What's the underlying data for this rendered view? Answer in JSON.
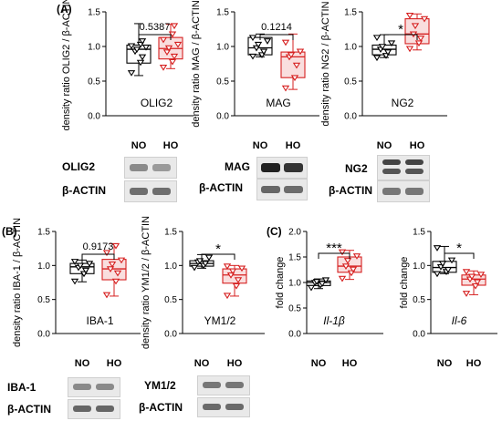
{
  "colors": {
    "control": "#000000",
    "treatment": "#d62020",
    "treatment_fill": "#f9dede"
  },
  "panels": [
    {
      "letter": "(A)"
    },
    {
      "letter": "(B)"
    },
    {
      "letter": "(C)"
    }
  ],
  "blots": [
    {
      "label": "OLIG2",
      "loading": "β-ACTIN"
    },
    {
      "label": "MAG",
      "loading": "β-ACTIN"
    },
    {
      "label": "NG2",
      "loading": "β-ACTIN"
    },
    {
      "label": "IBA-1",
      "loading": "β-ACTIN"
    },
    {
      "label": "YM1/2",
      "loading": "β-ACTIN"
    }
  ],
  "chart_data": [
    {
      "type": "box",
      "panel": "(A)",
      "ylabel": "density ratio OLIG2 / β-ACTIN",
      "ylim": [
        0,
        1.5
      ],
      "yticks": [
        "0.0",
        "0.5",
        "1.0",
        "1.5"
      ],
      "categories": [
        "NO",
        "HO"
      ],
      "inner_label": "OLIG2",
      "significance": "0.5387",
      "series": [
        {
          "name": "NO",
          "min": 0.58,
          "q1": 0.76,
          "median": 0.96,
          "q3": 1.02,
          "max": 1.33,
          "points": [
            0.62,
            0.77,
            0.85,
            0.93,
            0.96,
            0.99,
            1.01,
            1.03,
            1.08
          ]
        },
        {
          "name": "HO",
          "min": 0.68,
          "q1": 0.82,
          "median": 0.97,
          "q3": 1.13,
          "max": 1.32,
          "points": [
            0.7,
            0.78,
            0.86,
            0.92,
            0.98,
            1.03,
            1.1,
            1.18,
            1.3
          ]
        }
      ]
    },
    {
      "type": "box",
      "panel": "(A)",
      "ylabel": "density ratio MAG / β-ACTIN",
      "ylim": [
        0,
        1.5
      ],
      "yticks": [
        "0.0",
        "0.5",
        "1.0",
        "1.5"
      ],
      "categories": [
        "NO",
        "HO"
      ],
      "inner_label": "MAG",
      "significance": "0.1214",
      "series": [
        {
          "name": "NO",
          "min": 0.85,
          "q1": 0.88,
          "median": 0.98,
          "q3": 1.13,
          "max": 1.18,
          "points": [
            0.86,
            0.88,
            0.93,
            0.98,
            1.03,
            1.08,
            1.13
          ]
        },
        {
          "name": "HO",
          "min": 0.38,
          "q1": 0.55,
          "median": 0.85,
          "q3": 0.92,
          "max": 1.18,
          "points": [
            0.4,
            0.55,
            0.73,
            0.85,
            0.88,
            0.93,
            1.06
          ]
        }
      ]
    },
    {
      "type": "box",
      "panel": "(A)",
      "ylabel": "density ratio NG2 / β-ACTIN",
      "ylim": [
        0,
        1.5
      ],
      "yticks": [
        "0.0",
        "0.5",
        "1.0",
        "1.5"
      ],
      "categories": [
        "NO",
        "HO"
      ],
      "inner_label": "NG2",
      "significance": "*",
      "series": [
        {
          "name": "NO",
          "min": 0.84,
          "q1": 0.88,
          "median": 0.96,
          "q3": 1.02,
          "max": 1.17,
          "points": [
            0.84,
            0.87,
            0.92,
            0.96,
            1.0,
            1.05,
            1.13
          ]
        },
        {
          "name": "HO",
          "min": 0.95,
          "q1": 1.04,
          "median": 1.18,
          "q3": 1.4,
          "max": 1.47,
          "points": [
            0.97,
            1.05,
            1.12,
            1.18,
            1.3,
            1.4,
            1.45
          ]
        }
      ]
    },
    {
      "type": "box",
      "panel": "(B)",
      "ylabel": "density ratio IBA-1 / β-ACTIN",
      "ylim": [
        0,
        1.5
      ],
      "yticks": [
        "0.0",
        "0.5",
        "1.0",
        "1.5"
      ],
      "categories": [
        "NO",
        "HO"
      ],
      "inner_label": "IBA-1",
      "significance": "0.9173",
      "series": [
        {
          "name": "NO",
          "min": 0.76,
          "q1": 0.88,
          "median": 0.98,
          "q3": 1.03,
          "max": 1.08,
          "points": [
            0.77,
            0.88,
            0.93,
            0.97,
            1.0,
            1.03,
            1.06
          ]
        },
        {
          "name": "HO",
          "min": 0.55,
          "q1": 0.79,
          "median": 0.95,
          "q3": 1.09,
          "max": 1.32,
          "points": [
            0.57,
            0.77,
            0.89,
            0.95,
            1.02,
            1.08,
            1.19,
            1.29
          ]
        }
      ]
    },
    {
      "type": "box",
      "panel": "(B)",
      "ylabel": "density ratio YM1/2 / β-ACTIN",
      "ylim": [
        0,
        1.5
      ],
      "yticks": [
        "0.0",
        "0.5",
        "1.0",
        "1.5"
      ],
      "categories": [
        "NO",
        "HO"
      ],
      "inner_label": "YM1/2",
      "significance": "*",
      "series": [
        {
          "name": "NO",
          "min": 0.96,
          "q1": 0.99,
          "median": 1.03,
          "q3": 1.07,
          "max": 1.16,
          "points": [
            0.97,
            1.0,
            1.03,
            1.05,
            1.07,
            1.12
          ]
        },
        {
          "name": "HO",
          "min": 0.55,
          "q1": 0.74,
          "median": 0.86,
          "q3": 0.95,
          "max": 1.0,
          "points": [
            0.56,
            0.7,
            0.79,
            0.86,
            0.92,
            0.96,
            0.99
          ]
        }
      ]
    },
    {
      "type": "box",
      "panel": "(C)",
      "ylabel": "fold change",
      "ylim": [
        0,
        2.0
      ],
      "yticks": [
        "0.0",
        "0.5",
        "1.0",
        "1.5",
        "2.0"
      ],
      "categories": [
        "NO",
        "HO"
      ],
      "inner_label": "Il-1β",
      "significance": "***",
      "series": [
        {
          "name": "NO",
          "min": 0.88,
          "q1": 0.94,
          "median": 1.0,
          "q3": 1.03,
          "max": 1.07,
          "points": [
            0.9,
            0.95,
            0.98,
            1.0,
            1.02,
            1.05
          ]
        },
        {
          "name": "HO",
          "min": 1.06,
          "q1": 1.2,
          "median": 1.32,
          "q3": 1.5,
          "max": 1.63,
          "points": [
            1.08,
            1.19,
            1.26,
            1.32,
            1.43,
            1.52,
            1.6
          ]
        }
      ]
    },
    {
      "type": "box",
      "panel": "(C)",
      "ylabel": "fold change",
      "ylim": [
        0,
        1.5
      ],
      "yticks": [
        "0.0",
        "0.5",
        "1.0",
        "1.5"
      ],
      "categories": [
        "NO",
        "HO"
      ],
      "inner_label": "Il-6",
      "significance": "*",
      "series": [
        {
          "name": "NO",
          "min": 0.88,
          "q1": 0.9,
          "median": 0.97,
          "q3": 1.06,
          "max": 1.28,
          "points": [
            0.88,
            0.91,
            0.94,
            0.98,
            1.03,
            1.08,
            1.26
          ]
        },
        {
          "name": "HO",
          "min": 0.57,
          "q1": 0.71,
          "median": 0.8,
          "q3": 0.86,
          "max": 0.92,
          "points": [
            0.59,
            0.7,
            0.76,
            0.8,
            0.84,
            0.87,
            0.91
          ]
        }
      ]
    }
  ]
}
